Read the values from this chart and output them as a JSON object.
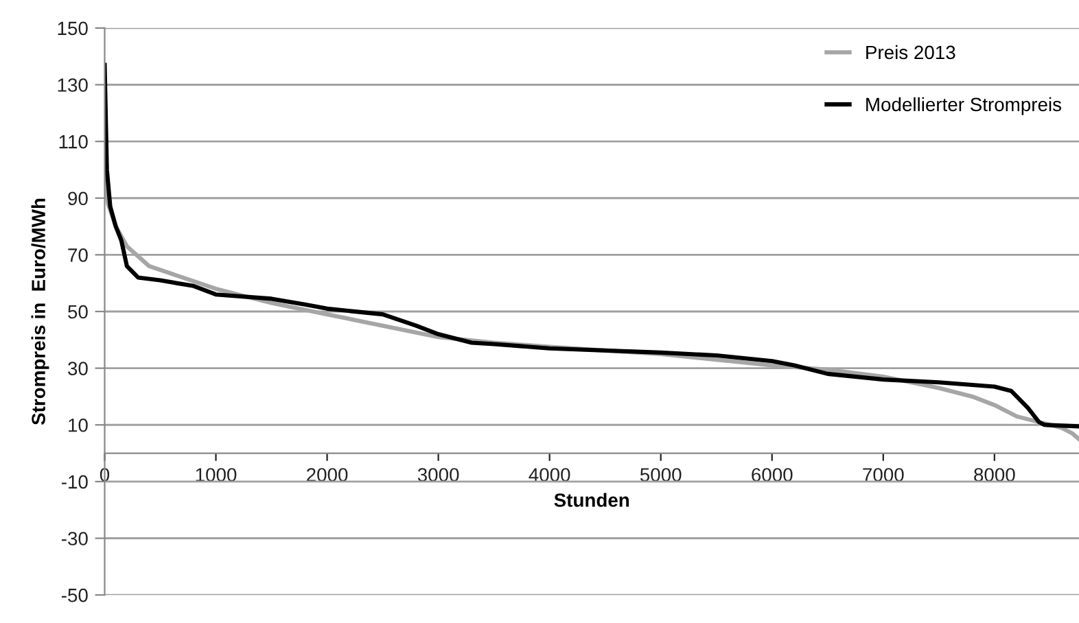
{
  "chart_data": {
    "type": "line",
    "xlabel": "Stunden",
    "ylabel": "Strompreis in  Euro/MWh",
    "xlim": [
      0,
      8760
    ],
    "xticks": [
      0,
      1000,
      2000,
      3000,
      4000,
      5000,
      6000,
      7000,
      8000
    ],
    "ylim": [
      -50,
      150
    ],
    "yticks": [
      -50,
      -30,
      -10,
      10,
      30,
      50,
      70,
      90,
      110,
      130,
      150
    ],
    "grid": "y",
    "legend": "top right",
    "marker": "none",
    "line_style": "solid",
    "series": [
      {
        "name": "Preis 2013",
        "color": "#a6a6a6",
        "x": [
          0,
          30,
          100,
          200,
          400,
          700,
          1000,
          1500,
          2000,
          2500,
          3000,
          3500,
          4000,
          5000,
          6000,
          6500,
          7000,
          7500,
          7800,
          8000,
          8200,
          8400,
          8600,
          8700,
          8760
        ],
        "values": [
          100,
          88,
          80,
          73,
          66,
          62,
          58,
          53,
          49,
          45,
          41,
          39,
          37.5,
          35,
          31,
          29.5,
          27,
          23,
          20,
          17,
          13,
          11,
          9,
          7,
          5
        ]
      },
      {
        "name": "Modellierter Strompreis",
        "color": "#000000",
        "x": [
          0,
          20,
          50,
          100,
          150,
          200,
          300,
          500,
          800,
          1000,
          1500,
          1800,
          2000,
          2500,
          2800,
          3000,
          3300,
          3500,
          4000,
          5000,
          5500,
          6000,
          6200,
          6500,
          7000,
          7500,
          8000,
          8150,
          8200,
          8300,
          8400,
          8450,
          8760
        ],
        "values": [
          137,
          100,
          87,
          80,
          75,
          66,
          62,
          61,
          59,
          56,
          54.5,
          52.5,
          51,
          49,
          45,
          42,
          39,
          38.5,
          37,
          35.5,
          34.5,
          32.5,
          31,
          28,
          26,
          25,
          23.5,
          22,
          20,
          16,
          11,
          10,
          9.5
        ]
      }
    ]
  }
}
